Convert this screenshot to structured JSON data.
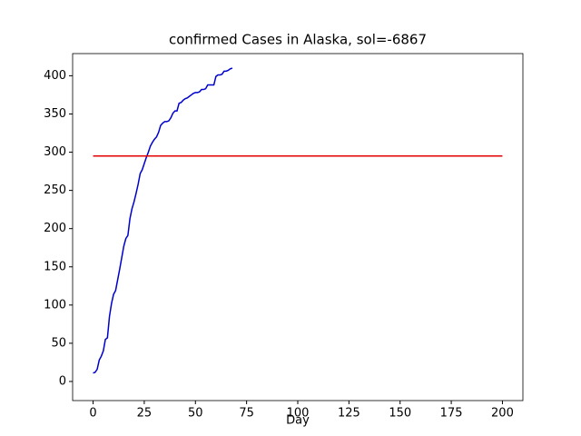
{
  "chart_data": {
    "type": "line",
    "title": "confirmed Cases in Alaska, sol=-6867",
    "x_label": "Day",
    "series": [
      {
        "color": "#0000cc",
        "x": [
          0,
          1,
          2,
          3,
          4,
          5,
          6,
          7,
          8,
          9,
          10,
          11,
          12,
          13,
          14,
          15,
          16,
          17,
          18,
          19,
          20,
          21,
          22,
          23,
          24,
          25,
          26,
          27,
          28,
          29,
          30,
          31,
          32,
          33,
          34,
          35,
          36,
          37,
          38,
          39,
          40,
          41,
          42,
          43,
          44,
          45,
          46,
          47,
          48,
          49,
          50,
          51,
          52,
          53,
          54,
          55,
          56,
          57,
          58,
          59,
          60,
          61,
          62,
          63,
          64,
          65,
          66,
          67,
          68
        ],
        "values": [
          11,
          12,
          16,
          28,
          33,
          40,
          55,
          57,
          85,
          102,
          114,
          119,
          133,
          147,
          162,
          177,
          187,
          191,
          213,
          226,
          235,
          246,
          258,
          272,
          277,
          285,
          293,
          300,
          308,
          313,
          317,
          320,
          326,
          335,
          338,
          340,
          340,
          341,
          345,
          351,
          354,
          354,
          364,
          365,
          368,
          370,
          371,
          373,
          375,
          377,
          378,
          378,
          379,
          382,
          382,
          383,
          388,
          388,
          388,
          388,
          399,
          401,
          401,
          402,
          406,
          406,
          407,
          409,
          410
        ]
      },
      {
        "color": "#e50000",
        "x": [
          0,
          200
        ],
        "values": [
          295,
          295
        ]
      }
    ],
    "xlim": [
      -10,
      210
    ],
    "xticks": [
      0,
      25,
      50,
      75,
      100,
      125,
      150,
      175,
      200
    ],
    "ylim": [
      -25,
      429
    ],
    "yticks": [
      0,
      50,
      100,
      150,
      200,
      250,
      300,
      350,
      400
    ]
  }
}
